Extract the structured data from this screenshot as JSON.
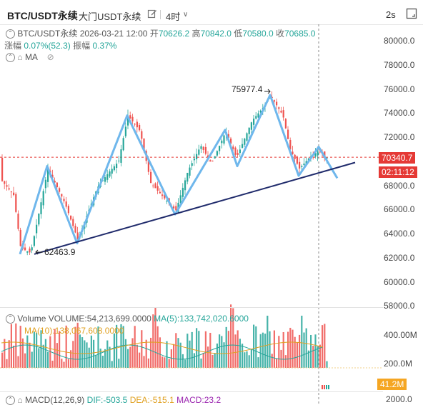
{
  "header": {
    "symbol": "BTC/USDT永续",
    "exchange": "大门USDT永续",
    "interval": "4时",
    "refresh": "2s"
  },
  "ohlc": {
    "pair": "BTC/USDT永续",
    "datetime": "2026-03-21 12:00",
    "open_label": "开",
    "open": "70626.2",
    "high_label": "高",
    "high": "70842.0",
    "low_label": "低",
    "low": "70580.0",
    "close_label": "收",
    "close": "70685.0",
    "change_label": "涨幅",
    "change": "0.07%(52.3)",
    "amp_label": "振幅",
    "amp": "0.37%"
  },
  "ma_label": "MA",
  "volume": {
    "label": "Volume",
    "value": "VOLUME:54,213,699.0000",
    "ma5": "MA(5):133,742,020.6000",
    "ma10": "MA(10):138,067,608.0000"
  },
  "macd": {
    "label": "MACD(12,26,9)",
    "dif": "DIF:-503.5",
    "dea": "DEA:-515.1",
    "macd": "MACD:23.2"
  },
  "price_axis": [
    "80000.0",
    "78000.0",
    "76000.0",
    "74000.0",
    "72000.0",
    "68000.0",
    "66000.0",
    "64000.0",
    "62000.0",
    "60000.0",
    "58000.0"
  ],
  "badges": {
    "price": "70340.7",
    "countdown": "02:11:12",
    "volume": "41.2M"
  },
  "volume_axis": [
    "400.00M",
    "200.0M"
  ],
  "macd_axis": "2000.0",
  "annotations": {
    "high": "75977.4",
    "low": "62463.9"
  },
  "colors": {
    "up": "#26a69a",
    "down": "#ef5350",
    "zigzag": "#6fb7ec",
    "trend": "#1f2a6b",
    "badge": "#e53935"
  }
}
